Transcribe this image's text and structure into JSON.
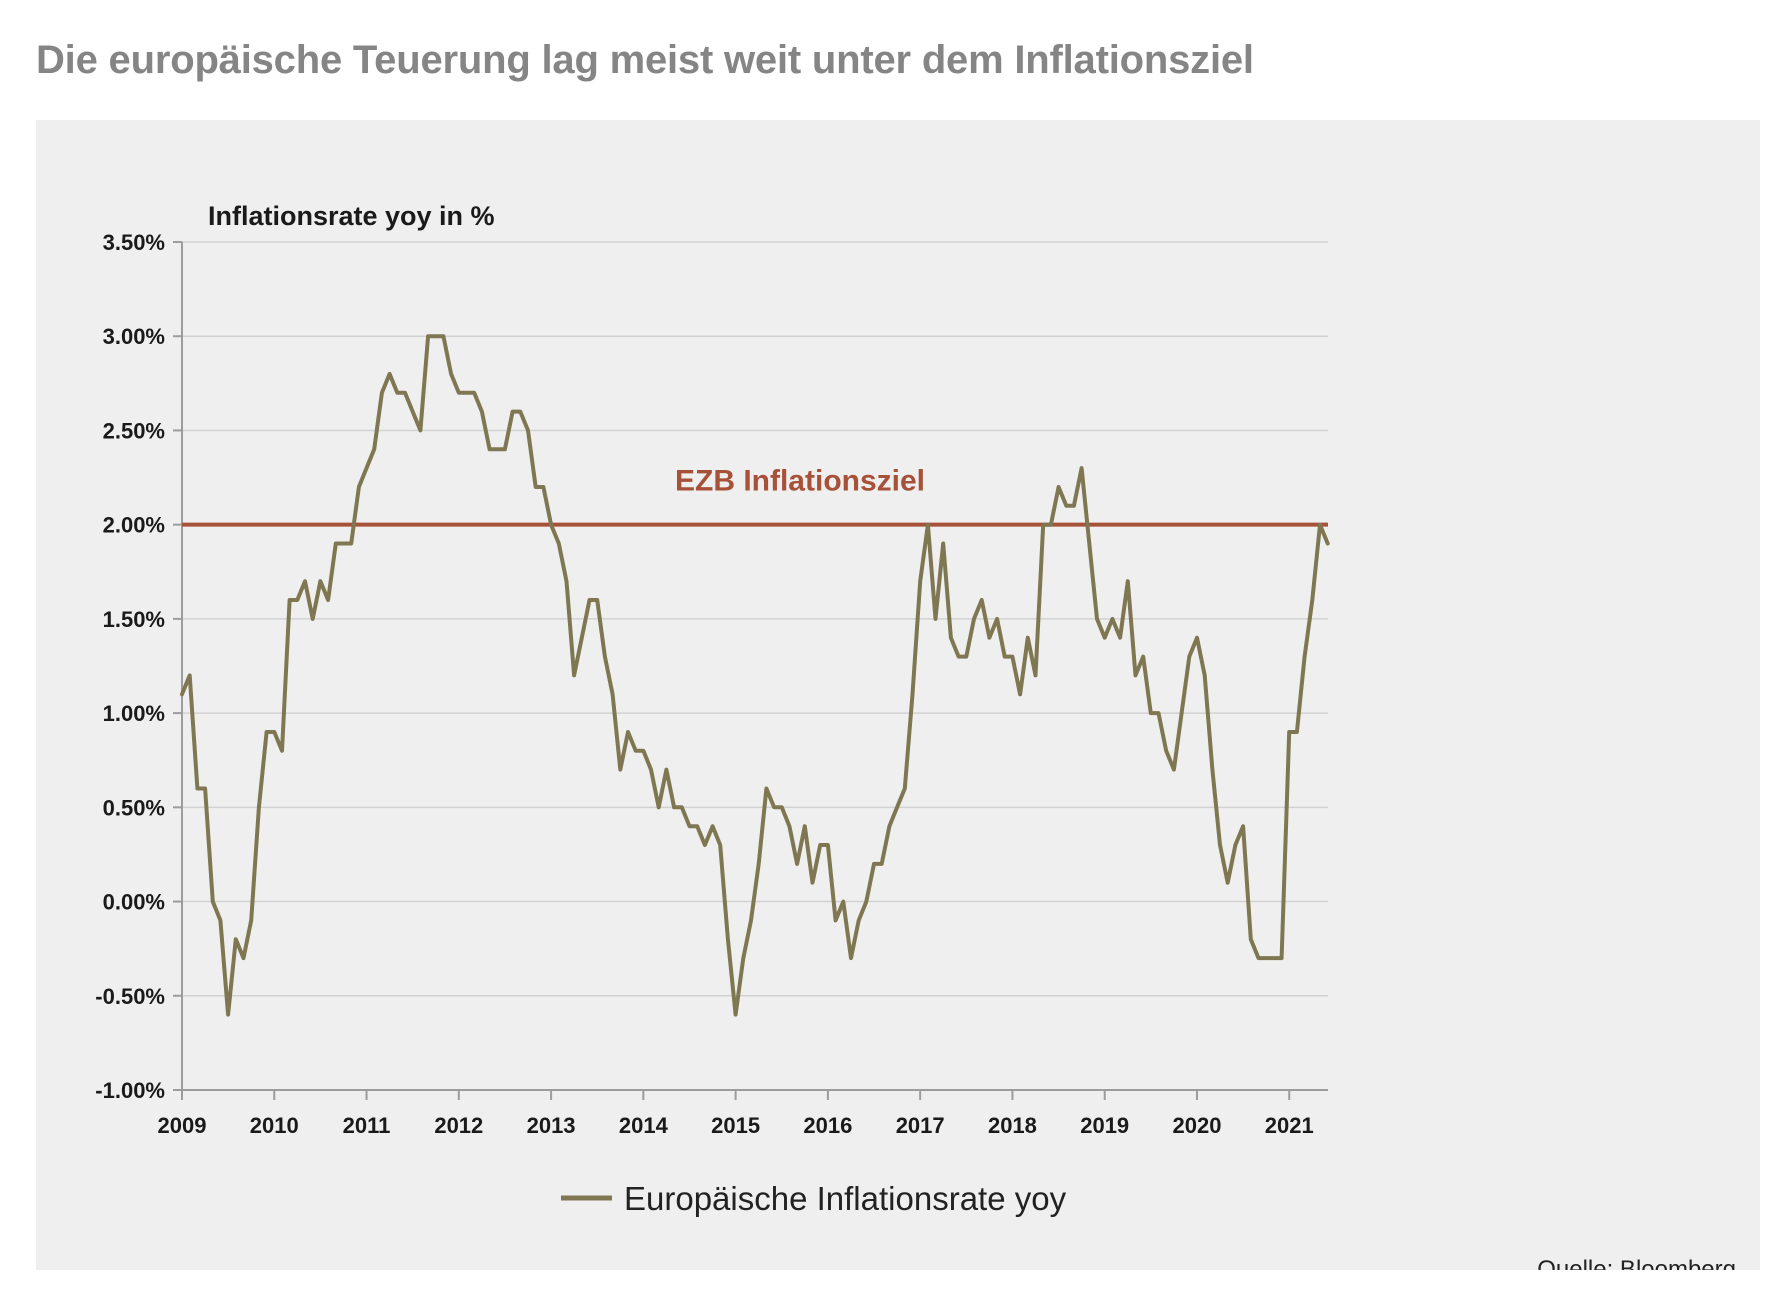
{
  "page": {
    "title": "Die europäische Teuerung lag meist weit unter dem Inflationsziel"
  },
  "colors": {
    "series": "#7f7752",
    "target": "#a75138",
    "grid": "#d2d2d2",
    "axis": "#9c9c9c",
    "panel": "#efefef",
    "title": "#858585"
  },
  "chart_data": {
    "type": "line",
    "ylabel": "Inflationsrate yoy in %",
    "xlabel": "",
    "ylim": [
      -1.0,
      3.5
    ],
    "xlim": [
      2009.0,
      2021.42
    ],
    "grid": true,
    "yticks": [
      -1.0,
      -0.5,
      0.0,
      0.5,
      1.0,
      1.5,
      2.0,
      2.5,
      3.0,
      3.5
    ],
    "ytick_labels": [
      "-1.00%",
      "-0.50%",
      "0.00%",
      "0.50%",
      "1.00%",
      "1.50%",
      "2.00%",
      "2.50%",
      "3.00%",
      "3.50%"
    ],
    "xticks": [
      2009,
      2010,
      2011,
      2012,
      2013,
      2014,
      2015,
      2016,
      2017,
      2018,
      2019,
      2020,
      2021
    ],
    "xtick_labels": [
      "2009",
      "2010",
      "2011",
      "2012",
      "2013",
      "2014",
      "2015",
      "2016",
      "2017",
      "2018",
      "2019",
      "2020",
      "2021"
    ],
    "legend_position": "bottom-center",
    "source": "Quelle: Bloomberg",
    "target": {
      "name": "EZB Inflationsziel",
      "value": 2.0
    },
    "series": [
      {
        "name": "Europäische Inflationsrate yoy",
        "start_year": 2009,
        "start_month": 1,
        "frequency": "monthly",
        "values": [
          1.1,
          1.2,
          0.6,
          0.6,
          0.0,
          -0.1,
          -0.6,
          -0.2,
          -0.3,
          -0.1,
          0.5,
          0.9,
          0.9,
          0.8,
          1.6,
          1.6,
          1.7,
          1.5,
          1.7,
          1.6,
          1.9,
          1.9,
          1.9,
          2.2,
          2.3,
          2.4,
          2.7,
          2.8,
          2.7,
          2.7,
          2.6,
          2.5,
          3.0,
          3.0,
          3.0,
          2.8,
          2.7,
          2.7,
          2.7,
          2.6,
          2.4,
          2.4,
          2.4,
          2.6,
          2.6,
          2.5,
          2.2,
          2.2,
          2.0,
          1.9,
          1.7,
          1.2,
          1.4,
          1.6,
          1.6,
          1.3,
          1.1,
          0.7,
          0.9,
          0.8,
          0.8,
          0.7,
          0.5,
          0.7,
          0.5,
          0.5,
          0.4,
          0.4,
          0.3,
          0.4,
          0.3,
          -0.2,
          -0.6,
          -0.3,
          -0.1,
          0.2,
          0.6,
          0.5,
          0.5,
          0.4,
          0.2,
          0.4,
          0.1,
          0.3,
          0.3,
          -0.1,
          0.0,
          -0.3,
          -0.1,
          0.0,
          0.2,
          0.2,
          0.4,
          0.5,
          0.6,
          1.1,
          1.7,
          2.0,
          1.5,
          1.9,
          1.4,
          1.3,
          1.3,
          1.5,
          1.6,
          1.4,
          1.5,
          1.3,
          1.3,
          1.1,
          1.4,
          1.2,
          2.0,
          2.0,
          2.2,
          2.1,
          2.1,
          2.3,
          1.9,
          1.5,
          1.4,
          1.5,
          1.4,
          1.7,
          1.2,
          1.3,
          1.0,
          1.0,
          0.8,
          0.7,
          1.0,
          1.3,
          1.4,
          1.2,
          0.7,
          0.3,
          0.1,
          0.3,
          0.4,
          -0.2,
          -0.3,
          -0.3,
          -0.3,
          -0.3,
          0.9,
          0.9,
          1.3,
          1.6,
          2.0,
          1.9
        ]
      }
    ]
  }
}
